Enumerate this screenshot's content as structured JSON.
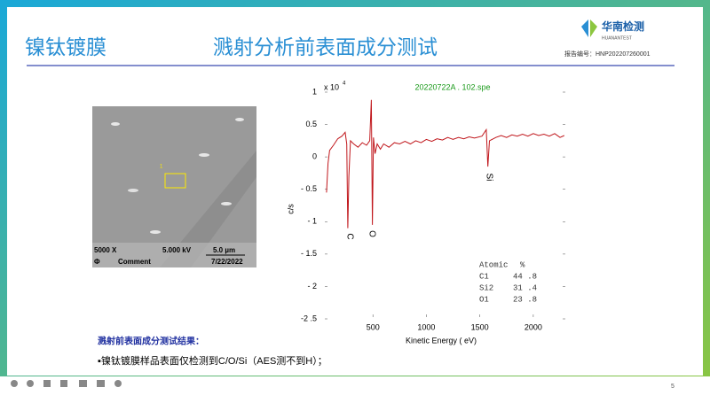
{
  "header": {
    "title_left": "镍钛镀膜",
    "title_main": "溅射分析前表面成分测试",
    "logo_name": "华南检测",
    "logo_sub": "HUANANTEST",
    "report_no": "报告编号：HNP202207260001"
  },
  "sem_image": {
    "magnification": "5000 X",
    "voltage": "5.000 kV",
    "scale": "5.0 µm",
    "symbol": "Φ",
    "comment": "Comment",
    "date": "7/22/2022",
    "marker": "1"
  },
  "chart_data": {
    "type": "line",
    "title": "20220722A . 102.spe",
    "y_multiplier": "x 10",
    "y_multiplier_exp": "4",
    "y_label": "c/s",
    "x_label": "Kinetic  Energy  ( eV)",
    "color": "#c0161b",
    "xlim": [
      0,
      2300
    ],
    "ylim": [
      -2.5,
      1
    ],
    "xticks": [
      500,
      1000,
      1500,
      2000
    ],
    "yticks": [
      1,
      0.5,
      0,
      {
        "value": -0.5,
        "label": "- 0.5"
      },
      {
        "value": -1,
        "label": "- 1"
      },
      {
        "value": -1.5,
        "label": "- 1.5"
      },
      {
        "value": -2,
        "label": "- 2"
      },
      {
        "value": -2.5,
        "label": "-2 .5"
      }
    ],
    "x": [
      66,
      80,
      95,
      130,
      170,
      210,
      240,
      255,
      265,
      275,
      290,
      320,
      360,
      400,
      440,
      470,
      485,
      495,
      505,
      520,
      540,
      570,
      600,
      650,
      700,
      750,
      800,
      850,
      900,
      950,
      1000,
      1050,
      1100,
      1150,
      1200,
      1250,
      1300,
      1350,
      1400,
      1450,
      1520,
      1560,
      1575,
      1590,
      1650,
      1700,
      1750,
      1800,
      1850,
      1900,
      1950,
      2000,
      2050,
      2100,
      2150,
      2200,
      2250,
      2290
    ],
    "values": [
      -0.55,
      -0.1,
      0.1,
      0.18,
      0.28,
      0.32,
      0.38,
      0.2,
      -1.1,
      -0.3,
      0.25,
      0.2,
      0.15,
      0.22,
      0.18,
      0.25,
      0.88,
      -1.05,
      0.3,
      0.05,
      0.2,
      0.12,
      0.2,
      0.15,
      0.22,
      0.2,
      0.24,
      0.2,
      0.25,
      0.22,
      0.27,
      0.24,
      0.28,
      0.26,
      0.3,
      0.27,
      0.3,
      0.28,
      0.31,
      0.29,
      0.32,
      0.42,
      -0.15,
      0.25,
      0.3,
      0.33,
      0.3,
      0.34,
      0.32,
      0.35,
      0.32,
      0.36,
      0.33,
      0.35,
      0.32,
      0.36,
      0.3,
      0.33
    ],
    "annotations": [
      "C",
      "O",
      "Si"
    ]
  },
  "atomic_table": {
    "header": [
      "Atomic",
      "%"
    ],
    "rows": [
      [
        "C1",
        "44 .8"
      ],
      [
        "Si2",
        "31 .4"
      ],
      [
        "O1",
        "23 .8"
      ]
    ]
  },
  "results": {
    "heading": "溅射前表面成分测试结果：",
    "text": "▪镍钛镀膜样品表面仅检测到C/O/Si（AES测不到H）；"
  },
  "footer": {
    "page": "5"
  }
}
